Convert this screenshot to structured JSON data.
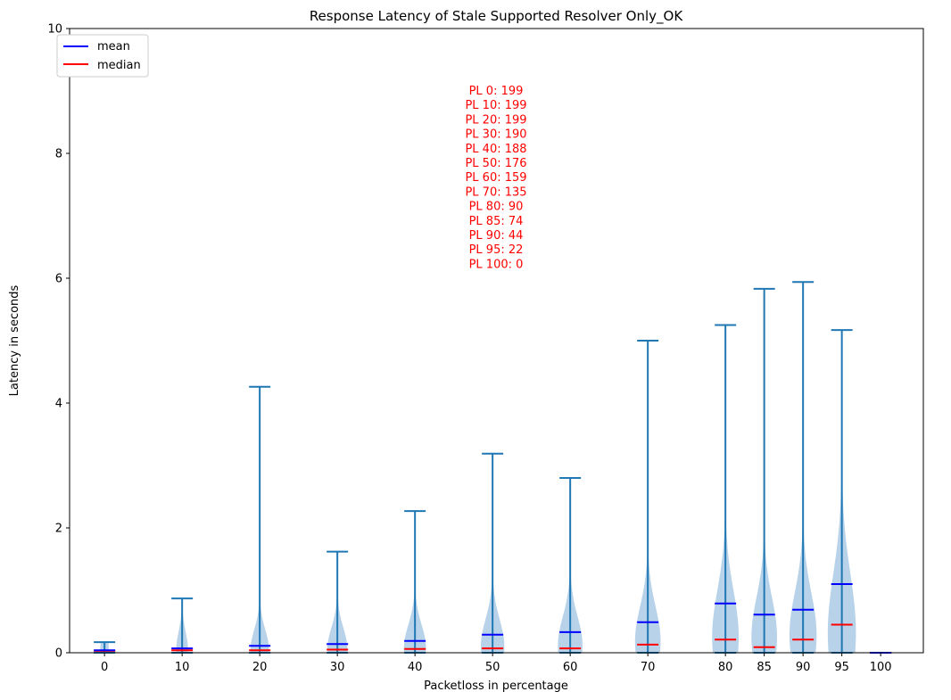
{
  "chart_data": {
    "type": "violin",
    "title": "Response Latency of Stale Supported Resolver Only_OK",
    "xlabel": "Packetloss in percentage",
    "ylabel": "Latency in seconds",
    "ylim": [
      0,
      10
    ],
    "yticks": [
      0,
      2,
      4,
      6,
      8,
      10
    ],
    "legend": {
      "position": "top-left",
      "entries": [
        {
          "label": "mean",
          "color": "#0000ff"
        },
        {
          "label": "median",
          "color": "#ff0000"
        }
      ]
    },
    "colors": {
      "body": "#a6c8e3",
      "whisker": "#1f77b4",
      "mean": "#0000ff",
      "median": "#ff0000",
      "annotation": "#ff0000"
    },
    "categories": [
      "0",
      "10",
      "20",
      "30",
      "40",
      "50",
      "60",
      "70",
      "80",
      "85",
      "90",
      "95",
      "100"
    ],
    "x": [
      0,
      10,
      20,
      30,
      40,
      50,
      60,
      70,
      80,
      85,
      90,
      95,
      100
    ],
    "violins": [
      {
        "x": 0,
        "min": 0.0,
        "max": 0.17,
        "mean": 0.04,
        "median": 0.03,
        "width": 0.17,
        "peak": 0.02
      },
      {
        "x": 10,
        "min": 0.0,
        "max": 0.87,
        "mean": 0.07,
        "median": 0.04,
        "width": 0.23,
        "peak": 0.04
      },
      {
        "x": 20,
        "min": 0.0,
        "max": 4.26,
        "mean": 0.11,
        "median": 0.04,
        "width": 0.36,
        "peak": 0.05
      },
      {
        "x": 30,
        "min": 0.0,
        "max": 1.62,
        "mean": 0.14,
        "median": 0.05,
        "width": 0.39,
        "peak": 0.06
      },
      {
        "x": 40,
        "min": 0.0,
        "max": 2.27,
        "mean": 0.19,
        "median": 0.06,
        "width": 0.43,
        "peak": 0.08
      },
      {
        "x": 50,
        "min": 0.0,
        "max": 3.19,
        "mean": 0.29,
        "median": 0.07,
        "width": 0.46,
        "peak": 0.1
      },
      {
        "x": 60,
        "min": 0.0,
        "max": 2.8,
        "mean": 0.33,
        "median": 0.07,
        "width": 0.48,
        "peak": 0.12
      },
      {
        "x": 70,
        "min": 0.0,
        "max": 5.0,
        "mean": 0.49,
        "median": 0.13,
        "width": 0.5,
        "peak": 0.18
      },
      {
        "x": 80,
        "min": 0.0,
        "max": 5.25,
        "mean": 0.79,
        "median": 0.21,
        "width": 0.52,
        "peak": 0.25
      },
      {
        "x": 85,
        "min": 0.0,
        "max": 5.83,
        "mean": 0.61,
        "median": 0.09,
        "width": 0.5,
        "peak": 0.25
      },
      {
        "x": 90,
        "min": 0.0,
        "max": 5.94,
        "mean": 0.69,
        "median": 0.21,
        "width": 0.53,
        "peak": 0.28
      },
      {
        "x": 95,
        "min": 0.0,
        "max": 5.17,
        "mean": 1.1,
        "median": 0.45,
        "width": 0.55,
        "peak": 0.32
      },
      {
        "x": 100,
        "min": 0.0,
        "max": 0.0,
        "mean": 0.0,
        "median": 0.0,
        "width": 0,
        "peak": 0
      }
    ],
    "annotations": [
      "PL 0: 199",
      "PL 10: 199",
      "PL 20: 199",
      "PL 30: 190",
      "PL 40: 188",
      "PL 50: 176",
      "PL 60: 159",
      "PL 70: 135",
      "PL 80: 90",
      "PL 85: 74",
      "PL 90: 44",
      "PL 95: 22",
      "PL 100: 0"
    ]
  }
}
